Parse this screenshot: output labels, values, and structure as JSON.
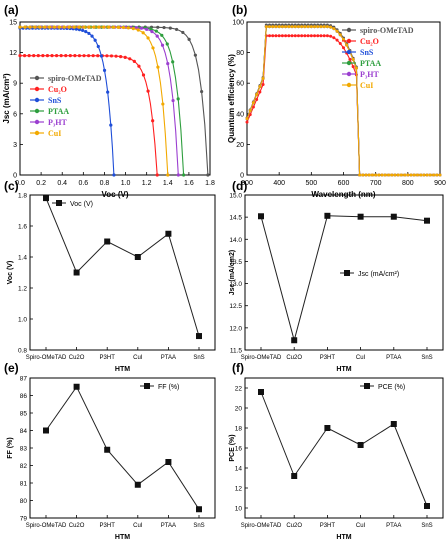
{
  "chart_data": [
    {
      "panel": "(a)",
      "type": "line",
      "xlabel": "Voc (V)",
      "ylabel": "Jsc (mA/cm²)",
      "xlim": [
        0.0,
        1.8
      ],
      "ylim": [
        0,
        15
      ],
      "xticks": [
        "0.0",
        "0.2",
        "0.4",
        "0.6",
        "0.8",
        "1.0",
        "1.2",
        "1.4",
        "1.6",
        "1.8"
      ],
      "yticks": [
        "0",
        "3",
        "6",
        "9",
        "12",
        "15"
      ],
      "legend": "center-left",
      "series": [
        {
          "name": "spiro-OMeTAD",
          "color": "#555555",
          "jsc": 14.5,
          "voc": 1.78
        },
        {
          "name": "Cu₂O",
          "color": "#ff2020",
          "jsc": 11.7,
          "voc": 1.3
        },
        {
          "name": "SnS",
          "color": "#1f4ed8",
          "jsc": 14.4,
          "voc": 0.89
        },
        {
          "name": "PTAA",
          "color": "#2e9e3e",
          "jsc": 14.5,
          "voc": 1.55
        },
        {
          "name": "P₃HT",
          "color": "#9b3fd0",
          "jsc": 14.5,
          "voc": 1.5
        },
        {
          "name": "CuI",
          "color": "#f2a900",
          "jsc": 14.5,
          "voc": 1.4
        }
      ]
    },
    {
      "panel": "(b)",
      "type": "line",
      "xlabel": "Wavelength (nm)",
      "ylabel": "Quantum efficiency (%)",
      "xlim": [
        300,
        900
      ],
      "ylim": [
        0,
        100
      ],
      "xticks": [
        "300",
        "400",
        "500",
        "600",
        "700",
        "800",
        "900"
      ],
      "yticks": [
        "0",
        "20",
        "40",
        "60",
        "80",
        "100"
      ],
      "legend": "top-right",
      "cutoff_nm": 650,
      "series": [
        {
          "name": "spiro-OMeTAD",
          "color": "#555555",
          "peak": 98
        },
        {
          "name": "Cu₂O",
          "color": "#ff2020",
          "peak": 91
        },
        {
          "name": "SnS",
          "color": "#1f4ed8",
          "peak": 97
        },
        {
          "name": "PTAA",
          "color": "#2e9e3e",
          "peak": 97
        },
        {
          "name": "P₃HT",
          "color": "#9b3fd0",
          "peak": 97
        },
        {
          "name": "CuI",
          "color": "#f2a900",
          "peak": 97
        }
      ]
    },
    {
      "panel": "(c)",
      "type": "line",
      "categories": [
        "Spiro-OMeTAD",
        "Cu2O",
        "P3HT",
        "CuI",
        "PTAA",
        "SnS"
      ],
      "values": [
        1.78,
        1.3,
        1.5,
        1.4,
        1.55,
        0.89
      ],
      "series_name": "Voc (V)",
      "xlabel": "HTM",
      "ylabel": "Voc (V)",
      "ylim": [
        0.8,
        1.8
      ],
      "yticks": [
        "0.8",
        "1.0",
        "1.2",
        "1.4",
        "1.6",
        "1.8"
      ],
      "legend": "top-left"
    },
    {
      "panel": "(d)",
      "type": "line",
      "categories": [
        "Spiro-OMeTAD",
        "Cu2O",
        "P3HT",
        "CuI",
        "PTAA",
        "SnS"
      ],
      "values": [
        14.52,
        11.72,
        14.53,
        14.51,
        14.51,
        14.42
      ],
      "series_name": "Jsc (mA/cm²)",
      "xlabel": "HTM",
      "ylabel": "Jsc (mA/cm2)",
      "ylim": [
        11.5,
        15.0
      ],
      "yticks": [
        "11.5",
        "12.0",
        "12.5",
        "13.0",
        "13.5",
        "14.0",
        "14.5",
        "15.0"
      ],
      "legend": "right"
    },
    {
      "panel": "(e)",
      "type": "line",
      "categories": [
        "Spiro-OMeTAD",
        "Cu2O",
        "P3HT",
        "CuI",
        "PTAA",
        "SnS"
      ],
      "values": [
        84.0,
        86.5,
        82.9,
        80.9,
        82.2,
        79.5
      ],
      "series_name": "FF (%)",
      "xlabel": "HTM",
      "ylabel": "FF (%)",
      "ylim": [
        79,
        87
      ],
      "yticks": [
        "79",
        "80",
        "81",
        "82",
        "83",
        "84",
        "85",
        "86",
        "87"
      ],
      "legend": "top-right"
    },
    {
      "panel": "(f)",
      "type": "line",
      "categories": [
        "Spiro-OMeTAD",
        "Cu2O",
        "P3HT",
        "CuI",
        "PTAA",
        "SnS"
      ],
      "values": [
        21.6,
        13.2,
        18.0,
        16.3,
        18.4,
        10.2
      ],
      "series_name": "PCE (%)",
      "xlabel": "HTM",
      "ylabel": "PCE (%)",
      "ylim": [
        9,
        23
      ],
      "yticks": [
        "10",
        "12",
        "14",
        "16",
        "18",
        "20",
        "22"
      ],
      "legend": "top-right"
    }
  ]
}
